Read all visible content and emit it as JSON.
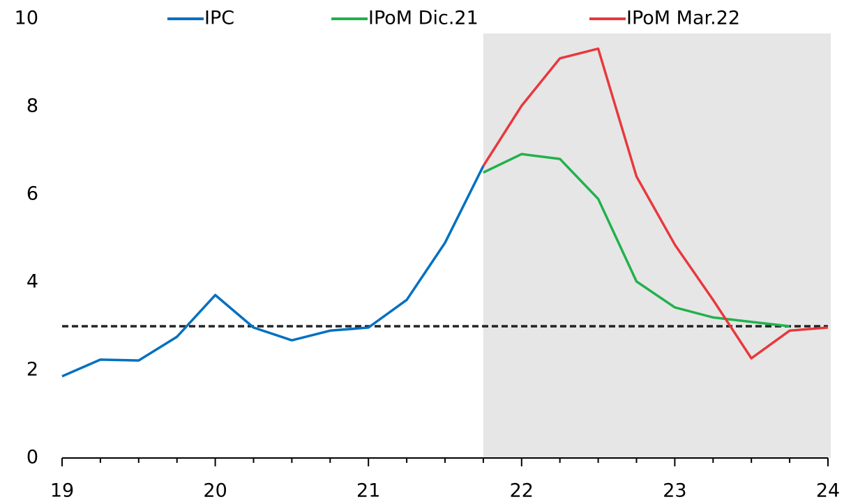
{
  "chart_data": {
    "type": "line",
    "series": [
      {
        "name": "IPC",
        "color": "#0070c0",
        "x": [
          19,
          19.25,
          19.5,
          19.75,
          20,
          20.25,
          20.5,
          20.75,
          21,
          21.25,
          21.5,
          21.75
        ],
        "values": [
          1.86,
          2.24,
          2.22,
          2.76,
          3.71,
          2.97,
          2.68,
          2.9,
          2.97,
          3.6,
          4.9,
          6.65
        ]
      },
      {
        "name": "IPoM Dic.21",
        "color": "#22b14c",
        "x": [
          21.75,
          22,
          22.25,
          22.5,
          22.75,
          23,
          23.25,
          23.5,
          23.75
        ],
        "values": [
          6.5,
          6.92,
          6.81,
          5.9,
          4.02,
          3.43,
          3.2,
          3.1,
          3.0
        ]
      },
      {
        "name": "IPoM Mar.22",
        "color": "#e8383d",
        "x": [
          21.75,
          22,
          22.25,
          22.5,
          22.75,
          23,
          23.25,
          23.5,
          23.75,
          24
        ],
        "values": [
          6.65,
          8.02,
          9.1,
          9.32,
          6.41,
          4.86,
          3.6,
          2.27,
          2.9,
          2.97
        ]
      }
    ],
    "reference_line": {
      "y": 3,
      "color": "#000000"
    },
    "shaded_x": [
      21.75,
      24
    ],
    "shade_color": "#e6e6e6",
    "xlim": [
      19,
      24
    ],
    "xticks": [
      19,
      20,
      21,
      22,
      23,
      24
    ],
    "ylim": [
      0,
      10
    ],
    "yticks": [
      0,
      2,
      4,
      6,
      8,
      10
    ],
    "grid": false
  }
}
